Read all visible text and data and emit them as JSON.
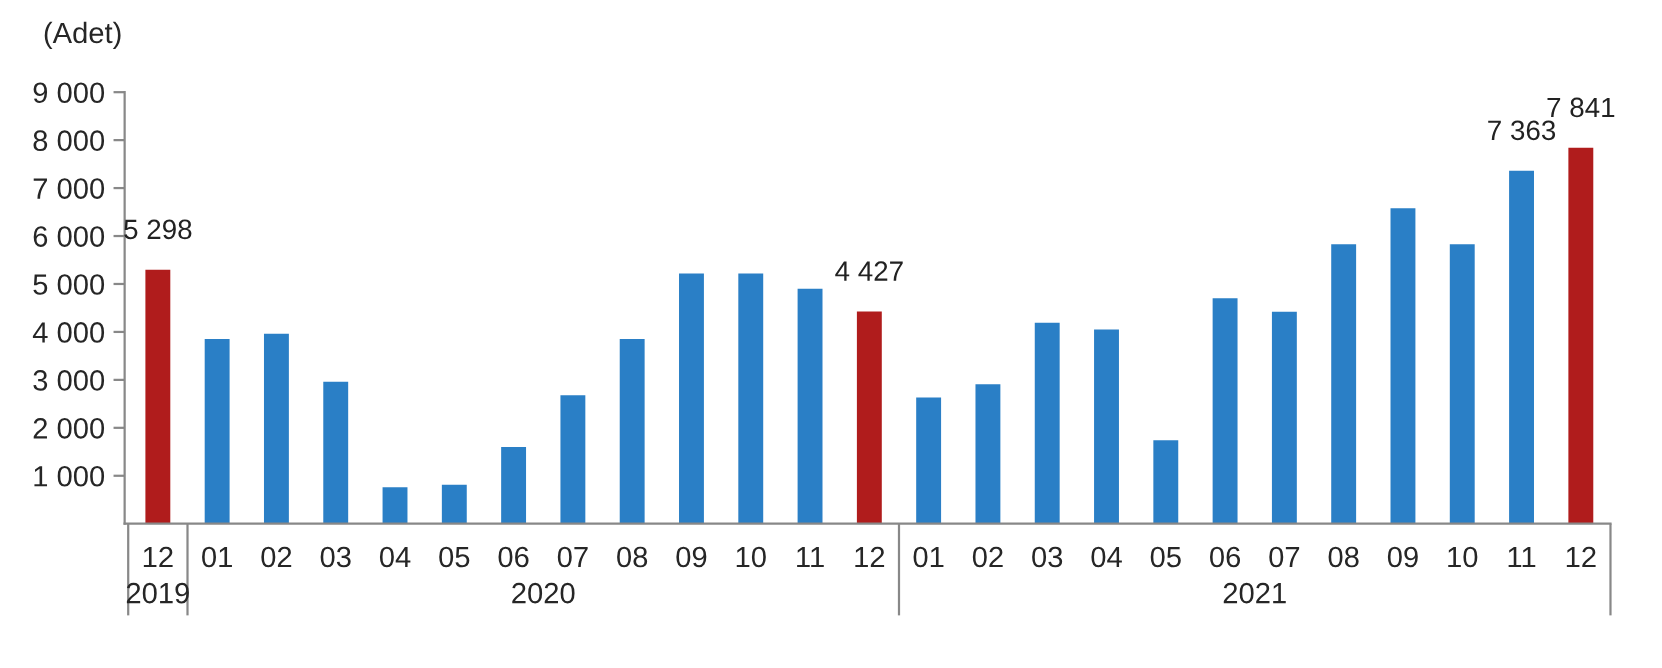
{
  "chart_data": {
    "type": "bar",
    "ylabel": "(Adet)",
    "categories": [
      "12",
      "01",
      "02",
      "03",
      "04",
      "05",
      "06",
      "07",
      "08",
      "09",
      "10",
      "11",
      "12",
      "01",
      "02",
      "03",
      "04",
      "05",
      "06",
      "07",
      "08",
      "09",
      "10",
      "11",
      "12"
    ],
    "values": [
      5298,
      3850,
      3960,
      2960,
      760,
      810,
      1600,
      2680,
      3850,
      5220,
      5220,
      4900,
      4427,
      2630,
      2910,
      4190,
      4050,
      1740,
      4700,
      4420,
      5830,
      6580,
      5830,
      7363,
      7841
    ],
    "colors": [
      "#b01c1c",
      "#2a7fc6",
      "#2a7fc6",
      "#2a7fc6",
      "#2a7fc6",
      "#2a7fc6",
      "#2a7fc6",
      "#2a7fc6",
      "#2a7fc6",
      "#2a7fc6",
      "#2a7fc6",
      "#2a7fc6",
      "#b01c1c",
      "#2a7fc6",
      "#2a7fc6",
      "#2a7fc6",
      "#2a7fc6",
      "#2a7fc6",
      "#2a7fc6",
      "#2a7fc6",
      "#2a7fc6",
      "#2a7fc6",
      "#2a7fc6",
      "#2a7fc6",
      "#b01c1c"
    ],
    "value_labels": [
      "5 298",
      null,
      null,
      null,
      null,
      null,
      null,
      null,
      null,
      null,
      null,
      null,
      "4 427",
      null,
      null,
      null,
      null,
      null,
      null,
      null,
      null,
      null,
      null,
      "7 363",
      "7 841"
    ],
    "annotations": [
      "2019",
      "2020",
      "2021"
    ],
    "ylim": [
      0,
      9000
    ],
    "yticks": [
      {
        "value": 1000,
        "label": "1 000"
      },
      {
        "value": 2000,
        "label": "2 000"
      },
      {
        "value": 3000,
        "label": "3 000"
      },
      {
        "value": 4000,
        "label": "4 000"
      },
      {
        "value": 5000,
        "label": "5 000"
      },
      {
        "value": 6000,
        "label": "6 000"
      },
      {
        "value": 7000,
        "label": "7 000"
      },
      {
        "value": 8000,
        "label": "8 000"
      },
      {
        "value": 9000,
        "label": "9 000"
      }
    ],
    "grid": false
  }
}
